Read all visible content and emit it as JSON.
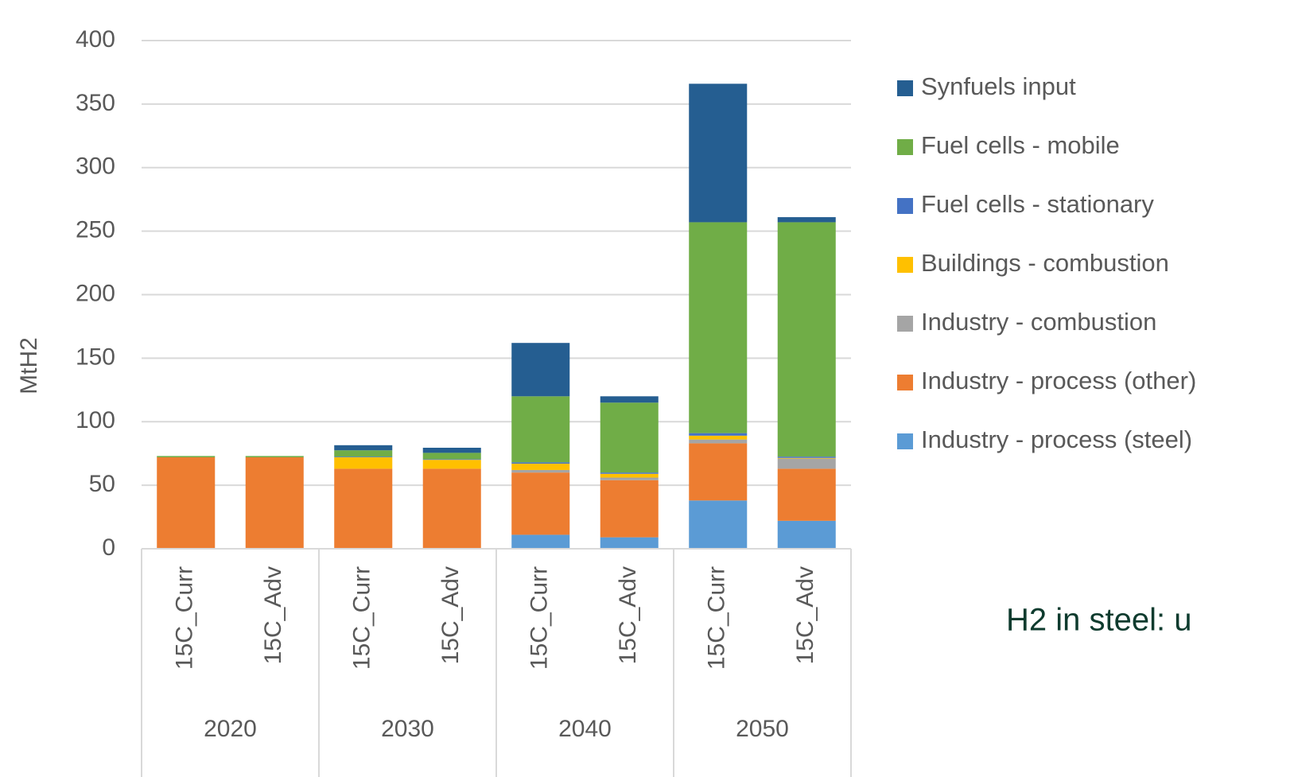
{
  "chart_data": {
    "type": "stacked-bar",
    "y_label": "MtH2",
    "annotation": "H2 in steel: u",
    "groups": [
      "2020",
      "2030",
      "2040",
      "2050"
    ],
    "categories": [
      "15C_Curr",
      "15C_Adv",
      "15C_Curr",
      "15C_Adv",
      "15C_Curr",
      "15C_Adv",
      "15C_Curr",
      "15C_Adv"
    ],
    "series": [
      {
        "name": "Industry - process (steel)",
        "color": "#5b9bd5",
        "values": [
          0,
          0,
          0,
          0,
          11,
          9,
          38,
          22
        ]
      },
      {
        "name": "Industry - process (other)",
        "color": "#ed7d31",
        "values": [
          72,
          72,
          63,
          63,
          49,
          45,
          45,
          41
        ]
      },
      {
        "name": "Industry - combustion",
        "color": "#a5a5a5",
        "values": [
          0,
          0,
          0,
          0,
          2,
          2,
          3,
          8
        ]
      },
      {
        "name": "Buildings - combustion",
        "color": "#ffc000",
        "values": [
          0,
          0,
          9,
          7,
          5,
          3,
          3,
          0.5
        ]
      },
      {
        "name": "Fuel cells - stationary",
        "color": "#4472c4",
        "values": [
          0,
          0,
          0.5,
          0.5,
          1,
          1,
          2,
          1
        ]
      },
      {
        "name": "Fuel cells - mobile",
        "color": "#70ad47",
        "values": [
          1,
          1,
          5,
          5,
          52,
          55,
          166,
          184.5
        ]
      },
      {
        "name": "Synfuels input",
        "color": "#255e91",
        "values": [
          0,
          0,
          4,
          4,
          42,
          5,
          109,
          4
        ]
      }
    ],
    "ylim": [
      0,
      400
    ],
    "yticks": [
      0,
      50,
      100,
      150,
      200,
      250,
      300,
      350,
      400
    ],
    "grid": true
  }
}
